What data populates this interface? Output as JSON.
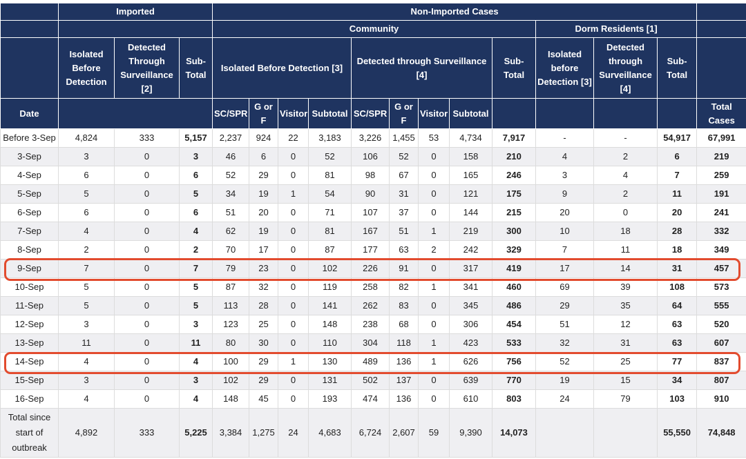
{
  "header": {
    "imported": "Imported",
    "non_imported": "Non-Imported Cases",
    "community": "Community",
    "dorm_residents": "Dorm Residents [1]",
    "imp_isolated": "Isolated Before Detection",
    "imp_detected": "Detected Through Surveillance [2]",
    "imp_subtotal": "Sub-Total",
    "com_isolated": "Isolated Before Detection [3]",
    "com_detected": "Detected through Surveillance [4]",
    "com_subtotal": "Sub-Total",
    "dorm_isolated": "Isolated before Detection [3]",
    "dorm_detected": "Detected through Surveillance [4]",
    "dorm_subtotal": "Sub-Total",
    "date": "Date",
    "sc_spr": "SC/SPR",
    "g_or_f": "G or F",
    "visitor": "Visitor",
    "subtotal": "Subtotal",
    "total_cases": "Total Cases"
  },
  "rows": [
    {
      "date": "Before 3-Sep",
      "ib": "4,824",
      "dt": "333",
      "st": "5,157",
      "a1": "2,237",
      "a2": "924",
      "a3": "22",
      "a4": "3,183",
      "b1": "3,226",
      "b2": "1,455",
      "b3": "53",
      "b4": "4,734",
      "cs": "7,917",
      "di": "-",
      "dd": "-",
      "ds": "54,917",
      "tot": "67,991"
    },
    {
      "date": "3-Sep",
      "ib": "3",
      "dt": "0",
      "st": "3",
      "a1": "46",
      "a2": "6",
      "a3": "0",
      "a4": "52",
      "b1": "106",
      "b2": "52",
      "b3": "0",
      "b4": "158",
      "cs": "210",
      "di": "4",
      "dd": "2",
      "ds": "6",
      "tot": "219"
    },
    {
      "date": "4-Sep",
      "ib": "6",
      "dt": "0",
      "st": "6",
      "a1": "52",
      "a2": "29",
      "a3": "0",
      "a4": "81",
      "b1": "98",
      "b2": "67",
      "b3": "0",
      "b4": "165",
      "cs": "246",
      "di": "3",
      "dd": "4",
      "ds": "7",
      "tot": "259"
    },
    {
      "date": "5-Sep",
      "ib": "5",
      "dt": "0",
      "st": "5",
      "a1": "34",
      "a2": "19",
      "a3": "1",
      "a4": "54",
      "b1": "90",
      "b2": "31",
      "b3": "0",
      "b4": "121",
      "cs": "175",
      "di": "9",
      "dd": "2",
      "ds": "11",
      "tot": "191"
    },
    {
      "date": "6-Sep",
      "ib": "6",
      "dt": "0",
      "st": "6",
      "a1": "51",
      "a2": "20",
      "a3": "0",
      "a4": "71",
      "b1": "107",
      "b2": "37",
      "b3": "0",
      "b4": "144",
      "cs": "215",
      "di": "20",
      "dd": "0",
      "ds": "20",
      "tot": "241"
    },
    {
      "date": "7-Sep",
      "ib": "4",
      "dt": "0",
      "st": "4",
      "a1": "62",
      "a2": "19",
      "a3": "0",
      "a4": "81",
      "b1": "167",
      "b2": "51",
      "b3": "1",
      "b4": "219",
      "cs": "300",
      "di": "10",
      "dd": "18",
      "ds": "28",
      "tot": "332"
    },
    {
      "date": "8-Sep",
      "ib": "2",
      "dt": "0",
      "st": "2",
      "a1": "70",
      "a2": "17",
      "a3": "0",
      "a4": "87",
      "b1": "177",
      "b2": "63",
      "b3": "2",
      "b4": "242",
      "cs": "329",
      "di": "7",
      "dd": "11",
      "ds": "18",
      "tot": "349"
    },
    {
      "date": "9-Sep",
      "ib": "7",
      "dt": "0",
      "st": "7",
      "a1": "79",
      "a2": "23",
      "a3": "0",
      "a4": "102",
      "b1": "226",
      "b2": "91",
      "b3": "0",
      "b4": "317",
      "cs": "419",
      "di": "17",
      "dd": "14",
      "ds": "31",
      "tot": "457"
    },
    {
      "date": "10-Sep",
      "ib": "5",
      "dt": "0",
      "st": "5",
      "a1": "87",
      "a2": "32",
      "a3": "0",
      "a4": "119",
      "b1": "258",
      "b2": "82",
      "b3": "1",
      "b4": "341",
      "cs": "460",
      "di": "69",
      "dd": "39",
      "ds": "108",
      "tot": "573"
    },
    {
      "date": "11-Sep",
      "ib": "5",
      "dt": "0",
      "st": "5",
      "a1": "113",
      "a2": "28",
      "a3": "0",
      "a4": "141",
      "b1": "262",
      "b2": "83",
      "b3": "0",
      "b4": "345",
      "cs": "486",
      "di": "29",
      "dd": "35",
      "ds": "64",
      "tot": "555"
    },
    {
      "date": "12-Sep",
      "ib": "3",
      "dt": "0",
      "st": "3",
      "a1": "123",
      "a2": "25",
      "a3": "0",
      "a4": "148",
      "b1": "238",
      "b2": "68",
      "b3": "0",
      "b4": "306",
      "cs": "454",
      "di": "51",
      "dd": "12",
      "ds": "63",
      "tot": "520"
    },
    {
      "date": "13-Sep",
      "ib": "11",
      "dt": "0",
      "st": "11",
      "a1": "80",
      "a2": "30",
      "a3": "0",
      "a4": "110",
      "b1": "304",
      "b2": "118",
      "b3": "1",
      "b4": "423",
      "cs": "533",
      "di": "32",
      "dd": "31",
      "ds": "63",
      "tot": "607"
    },
    {
      "date": "14-Sep",
      "ib": "4",
      "dt": "0",
      "st": "4",
      "a1": "100",
      "a2": "29",
      "a3": "1",
      "a4": "130",
      "b1": "489",
      "b2": "136",
      "b3": "1",
      "b4": "626",
      "cs": "756",
      "di": "52",
      "dd": "25",
      "ds": "77",
      "tot": "837"
    },
    {
      "date": "15-Sep",
      "ib": "3",
      "dt": "0",
      "st": "3",
      "a1": "102",
      "a2": "29",
      "a3": "0",
      "a4": "131",
      "b1": "502",
      "b2": "137",
      "b3": "0",
      "b4": "639",
      "cs": "770",
      "di": "19",
      "dd": "15",
      "ds": "34",
      "tot": "807"
    },
    {
      "date": "16-Sep",
      "ib": "4",
      "dt": "0",
      "st": "4",
      "a1": "148",
      "a2": "45",
      "a3": "0",
      "a4": "193",
      "b1": "474",
      "b2": "136",
      "b3": "0",
      "b4": "610",
      "cs": "803",
      "di": "24",
      "dd": "79",
      "ds": "103",
      "tot": "910"
    }
  ],
  "total": {
    "date": "Total since start of outbreak",
    "ib": "4,892",
    "dt": "333",
    "st": "5,225",
    "a1": "3,384",
    "a2": "1,275",
    "a3": "24",
    "a4": "4,683",
    "b1": "6,724",
    "b2": "2,607",
    "b3": "59",
    "b4": "9,390",
    "cs": "14,073",
    "di": "",
    "dd": "",
    "ds": "55,550",
    "tot": "74,848"
  },
  "highlight_color": "#e24b2e",
  "highlighted_dates": [
    "9-Sep",
    "14-Sep"
  ]
}
